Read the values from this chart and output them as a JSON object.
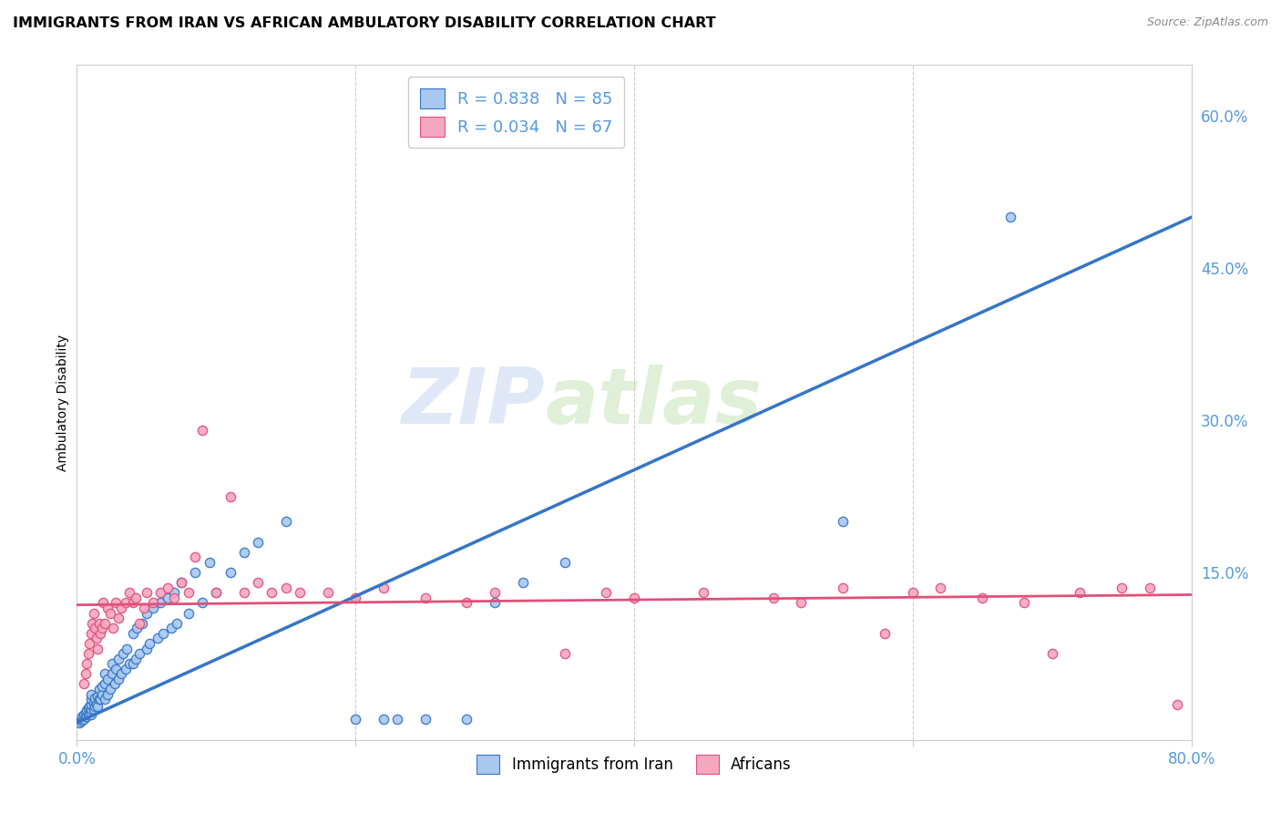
{
  "title": "IMMIGRANTS FROM IRAN VS AFRICAN AMBULATORY DISABILITY CORRELATION CHART",
  "source": "Source: ZipAtlas.com",
  "ylabel": "Ambulatory Disability",
  "right_yticks": [
    "60.0%",
    "45.0%",
    "30.0%",
    "15.0%"
  ],
  "right_ytick_vals": [
    0.6,
    0.45,
    0.3,
    0.15
  ],
  "xlim": [
    0.0,
    0.8
  ],
  "ylim": [
    -0.015,
    0.65
  ],
  "blue_color": "#A8C8F0",
  "pink_color": "#F4A8C0",
  "blue_line_color": "#3575C8",
  "pink_line_color": "#E0507A",
  "legend_blue_label": "R = 0.838   N = 85",
  "legend_pink_label": "R = 0.034   N = 67",
  "legend_iran_label": "Immigrants from Iran",
  "legend_african_label": "Africans",
  "watermark_zip": "ZIP",
  "watermark_atlas": "atlas",
  "blue_scatter_x": [
    0.002,
    0.003,
    0.004,
    0.004,
    0.005,
    0.005,
    0.006,
    0.006,
    0.007,
    0.007,
    0.008,
    0.008,
    0.009,
    0.009,
    0.01,
    0.01,
    0.01,
    0.01,
    0.01,
    0.012,
    0.012,
    0.013,
    0.013,
    0.014,
    0.015,
    0.015,
    0.016,
    0.016,
    0.017,
    0.018,
    0.018,
    0.02,
    0.02,
    0.02,
    0.022,
    0.022,
    0.024,
    0.025,
    0.025,
    0.027,
    0.028,
    0.03,
    0.03,
    0.032,
    0.033,
    0.035,
    0.036,
    0.038,
    0.04,
    0.04,
    0.042,
    0.043,
    0.045,
    0.047,
    0.05,
    0.05,
    0.052,
    0.055,
    0.058,
    0.06,
    0.062,
    0.065,
    0.068,
    0.07,
    0.072,
    0.075,
    0.08,
    0.085,
    0.09,
    0.095,
    0.1,
    0.11,
    0.12,
    0.13,
    0.15,
    0.2,
    0.22,
    0.23,
    0.25,
    0.28,
    0.3,
    0.32,
    0.35,
    0.55,
    0.67
  ],
  "blue_scatter_y": [
    0.002,
    0.004,
    0.005,
    0.008,
    0.005,
    0.01,
    0.008,
    0.012,
    0.008,
    0.014,
    0.01,
    0.016,
    0.01,
    0.018,
    0.01,
    0.015,
    0.02,
    0.025,
    0.03,
    0.015,
    0.022,
    0.018,
    0.026,
    0.02,
    0.018,
    0.028,
    0.025,
    0.035,
    0.025,
    0.03,
    0.038,
    0.025,
    0.04,
    0.05,
    0.03,
    0.045,
    0.035,
    0.05,
    0.06,
    0.04,
    0.055,
    0.045,
    0.065,
    0.05,
    0.07,
    0.055,
    0.075,
    0.06,
    0.06,
    0.09,
    0.065,
    0.095,
    0.07,
    0.1,
    0.075,
    0.11,
    0.08,
    0.115,
    0.085,
    0.12,
    0.09,
    0.125,
    0.095,
    0.13,
    0.1,
    0.14,
    0.11,
    0.15,
    0.12,
    0.16,
    0.13,
    0.15,
    0.17,
    0.18,
    0.2,
    0.005,
    0.005,
    0.005,
    0.005,
    0.005,
    0.12,
    0.14,
    0.16,
    0.2,
    0.5
  ],
  "pink_scatter_x": [
    0.005,
    0.006,
    0.007,
    0.008,
    0.009,
    0.01,
    0.011,
    0.012,
    0.013,
    0.014,
    0.015,
    0.016,
    0.017,
    0.018,
    0.019,
    0.02,
    0.022,
    0.024,
    0.026,
    0.028,
    0.03,
    0.032,
    0.035,
    0.038,
    0.04,
    0.042,
    0.045,
    0.048,
    0.05,
    0.055,
    0.06,
    0.065,
    0.07,
    0.075,
    0.08,
    0.085,
    0.09,
    0.1,
    0.11,
    0.12,
    0.13,
    0.14,
    0.15,
    0.16,
    0.18,
    0.2,
    0.22,
    0.25,
    0.28,
    0.3,
    0.35,
    0.38,
    0.4,
    0.45,
    0.5,
    0.52,
    0.55,
    0.58,
    0.6,
    0.62,
    0.65,
    0.68,
    0.7,
    0.72,
    0.75,
    0.77,
    0.79
  ],
  "pink_scatter_y": [
    0.04,
    0.05,
    0.06,
    0.07,
    0.08,
    0.09,
    0.1,
    0.11,
    0.095,
    0.085,
    0.075,
    0.1,
    0.09,
    0.095,
    0.12,
    0.1,
    0.115,
    0.11,
    0.095,
    0.12,
    0.105,
    0.115,
    0.12,
    0.13,
    0.12,
    0.125,
    0.1,
    0.115,
    0.13,
    0.12,
    0.13,
    0.135,
    0.125,
    0.14,
    0.13,
    0.165,
    0.29,
    0.13,
    0.225,
    0.13,
    0.14,
    0.13,
    0.135,
    0.13,
    0.13,
    0.125,
    0.135,
    0.125,
    0.12,
    0.13,
    0.07,
    0.13,
    0.125,
    0.13,
    0.125,
    0.12,
    0.135,
    0.09,
    0.13,
    0.135,
    0.125,
    0.12,
    0.07,
    0.13,
    0.135,
    0.135,
    0.02
  ],
  "blue_trend_x": [
    0.0,
    0.8
  ],
  "blue_trend_y": [
    0.002,
    0.5
  ],
  "pink_trend_x": [
    0.0,
    0.8
  ],
  "pink_trend_y": [
    0.118,
    0.128
  ],
  "grid_color": "#CCCCCC",
  "background_color": "#FFFFFF",
  "title_fontsize": 11.5,
  "source_fontsize": 9,
  "tick_color": "#5599DD",
  "marker_size": 55,
  "marker_lw": 1.0
}
